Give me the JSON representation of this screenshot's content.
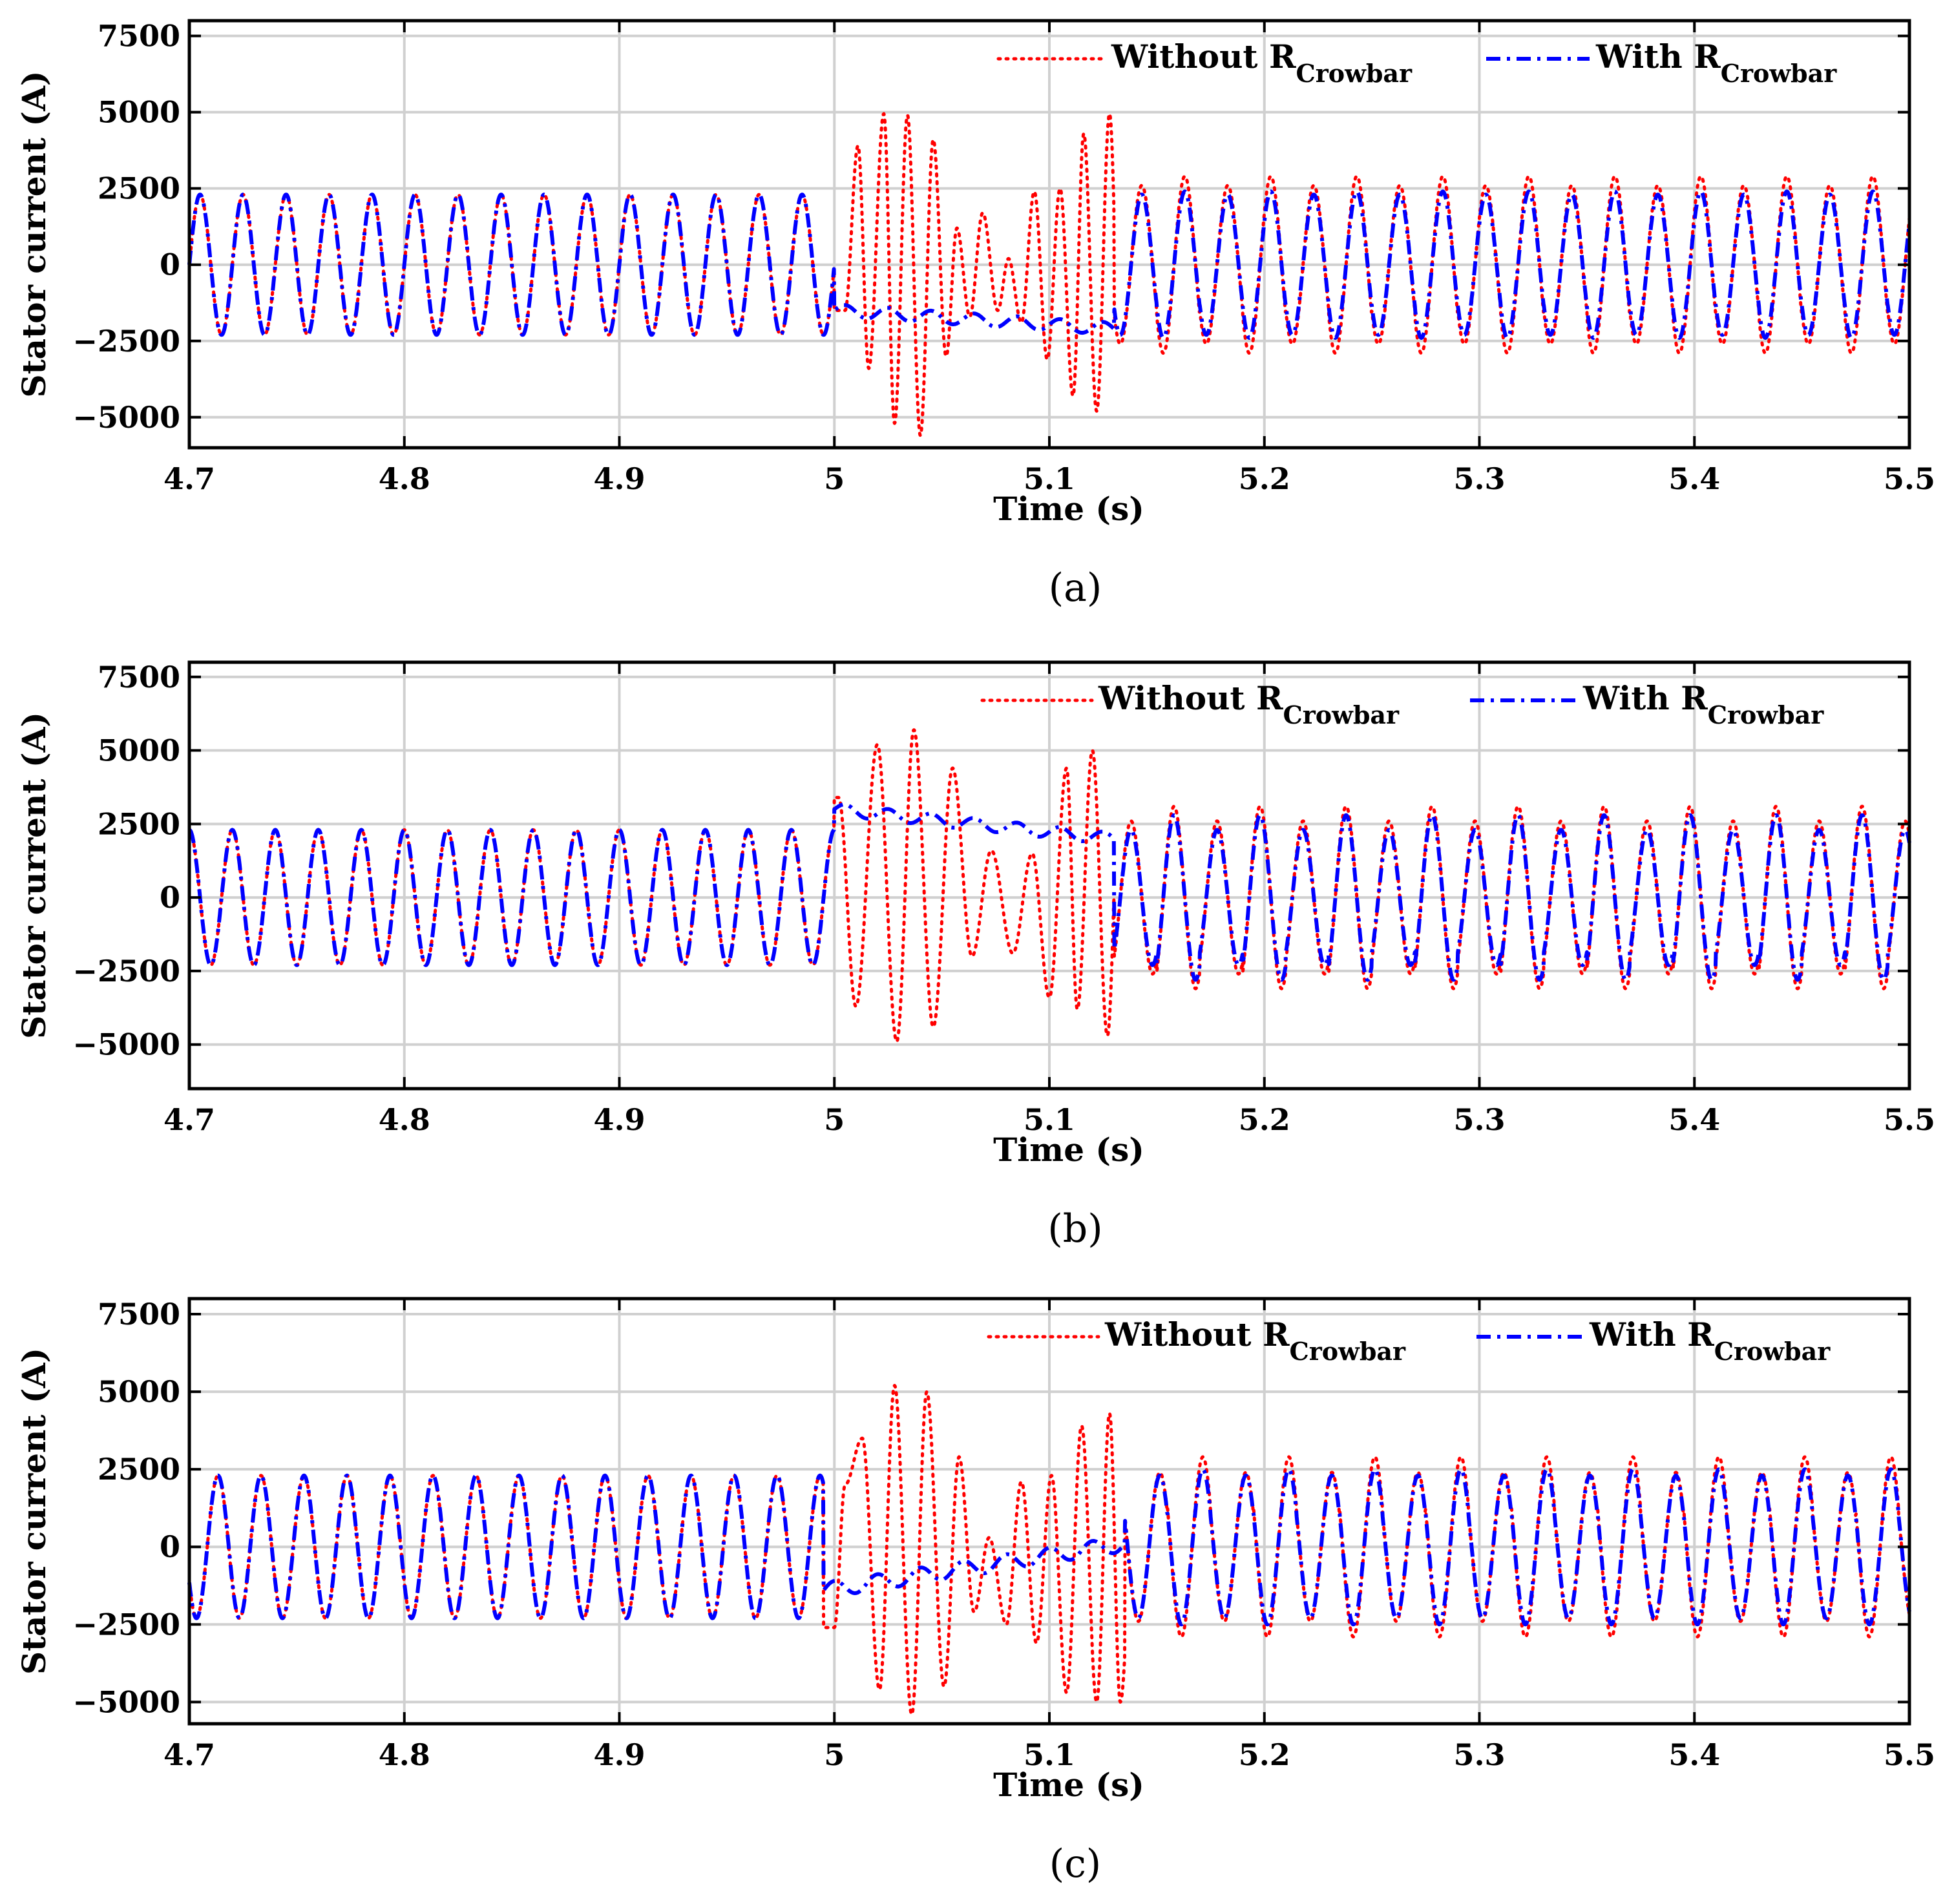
{
  "figure": {
    "colors": {
      "without": "#ff0000",
      "with": "#0000ff",
      "grid": "#d0d0d0",
      "axis": "#000000"
    }
  },
  "chart_data": [
    {
      "type": "line",
      "panel": "a",
      "caption": "(a)",
      "xlabel": "Time (s)",
      "ylabel": "Stator current (A)",
      "xlim": [
        4.7,
        5.5
      ],
      "ylim": [
        -6000,
        8000
      ],
      "xticks": [
        4.7,
        4.8,
        4.9,
        5.0,
        5.1,
        5.2,
        5.3,
        5.4,
        5.5
      ],
      "xtick_labels": [
        "4.7",
        "4.8",
        "4.9",
        "5",
        "5.1",
        "5.2",
        "5.3",
        "5.4",
        "5.5"
      ],
      "yticks": [
        7500,
        5000,
        2500,
        0,
        -2500,
        -5000
      ],
      "ytick_labels": [
        "7500",
        "5000",
        "2500",
        "0",
        "−2500",
        "−5000"
      ],
      "grid": true,
      "legend": {
        "position": "top-right",
        "entries": [
          {
            "name": "Without",
            "sub": "Crowbar",
            "style": "dotted",
            "series": "without"
          },
          {
            "name": "With",
            "sub": "Crowbar",
            "style": "dash-dot",
            "series": "with"
          }
        ],
        "symbol": "R"
      },
      "series": [
        {
          "name": "Without R_Crowbar",
          "style": "dotted",
          "frequency_hz": 50,
          "fault_window_s": [
            5.0,
            5.13
          ],
          "pre_fault_amplitude": 2300,
          "pre_fault_phase_deg": 0,
          "fault_peaks": [
            [
              5.005,
              -1500
            ],
            [
              5.011,
              3900
            ],
            [
              5.016,
              -3400
            ],
            [
              5.023,
              4950
            ],
            [
              5.028,
              -5200
            ],
            [
              5.034,
              4900
            ],
            [
              5.04,
              -5600
            ],
            [
              5.046,
              4100
            ],
            [
              5.052,
              -3000
            ],
            [
              5.057,
              1200
            ],
            [
              5.063,
              -1700
            ],
            [
              5.069,
              1700
            ],
            [
              5.076,
              -1500
            ],
            [
              5.081,
              200
            ],
            [
              5.087,
              -1900
            ],
            [
              5.093,
              2400
            ],
            [
              5.099,
              -3100
            ],
            [
              5.105,
              2500
            ],
            [
              5.111,
              -4300
            ],
            [
              5.116,
              4300
            ],
            [
              5.122,
              -4800
            ],
            [
              5.128,
              4950
            ],
            [
              5.133,
              -3800
            ],
            [
              5.138,
              2000
            ]
          ],
          "post_fault_amplitude": [
            2600,
            2900
          ],
          "post_fault_phase_deg": 36
        },
        {
          "name": "With R_Crowbar",
          "style": "dash-dot",
          "frequency_hz": 50,
          "fault_window_s": [
            5.0,
            5.13
          ],
          "pre_fault_amplitude": 2300,
          "pre_fault_phase_deg": 0,
          "fault_dc": [
            -1500,
            -2100
          ],
          "fault_ripple": 200,
          "post_fault_amplitude": [
            2300,
            2400
          ],
          "post_fault_phase_deg": 36
        }
      ]
    },
    {
      "type": "line",
      "panel": "b",
      "caption": "(b)",
      "xlabel": "Time (s)",
      "ylabel": "Stator current (A)",
      "xlim": [
        4.7,
        5.5
      ],
      "ylim": [
        -6500,
        8000
      ],
      "xticks": [
        4.7,
        4.8,
        4.9,
        5.0,
        5.1,
        5.2,
        5.3,
        5.4,
        5.5
      ],
      "xtick_labels": [
        "4.7",
        "4.8",
        "4.9",
        "5",
        "5.1",
        "5.2",
        "5.3",
        "5.4",
        "5.5"
      ],
      "yticks": [
        7500,
        5000,
        2500,
        0,
        -2500,
        -5000
      ],
      "ytick_labels": [
        "7500",
        "5000",
        "2500",
        "0",
        "−2500",
        "−5000"
      ],
      "grid": true,
      "legend": {
        "position": "top-right",
        "entries": [
          {
            "name": "Without",
            "sub": "Crowbar",
            "style": "dotted",
            "series": "without"
          },
          {
            "name": "With",
            "sub": "Crowbar",
            "style": "dash-dot",
            "series": "with"
          }
        ],
        "symbol": "R"
      },
      "series": [
        {
          "name": "Without R_Crowbar",
          "style": "dotted",
          "frequency_hz": 50,
          "fault_window_s": [
            5.0,
            5.13
          ],
          "pre_fault_amplitude": 2300,
          "pre_fault_phase_deg": 90,
          "fault_peaks": [
            [
              5.002,
              3400
            ],
            [
              5.01,
              -3700
            ],
            [
              5.02,
              5200
            ],
            [
              5.029,
              -4900
            ],
            [
              5.037,
              5700
            ],
            [
              5.046,
              -4400
            ],
            [
              5.055,
              4400
            ],
            [
              5.064,
              -2000
            ],
            [
              5.073,
              1600
            ],
            [
              5.083,
              -1900
            ],
            [
              5.092,
              1500
            ],
            [
              5.1,
              -3400
            ],
            [
              5.108,
              4400
            ],
            [
              5.113,
              -3800
            ],
            [
              5.12,
              5000
            ],
            [
              5.127,
              -4700
            ],
            [
              5.133,
              4700
            ],
            [
              5.138,
              -2300
            ]
          ],
          "post_fault_amplitude": [
            2600,
            3100
          ],
          "post_fault_phase_deg": 126
        },
        {
          "name": "With R_Crowbar",
          "style": "dash-dot",
          "frequency_hz": 50,
          "fault_window_s": [
            5.0,
            5.13
          ],
          "pre_fault_amplitude": 2300,
          "pre_fault_phase_deg": 90,
          "fault_dc": [
            3000,
            2000
          ],
          "fault_ripple": 200,
          "post_fault_amplitude": [
            2300,
            2800
          ],
          "post_fault_phase_deg": 126
        }
      ]
    },
    {
      "type": "line",
      "panel": "c",
      "caption": "(c)",
      "xlabel": "Time (s)",
      "ylabel": "Stator current (A)",
      "xlim": [
        4.7,
        5.5
      ],
      "ylim": [
        -5700,
        8000
      ],
      "xticks": [
        4.7,
        4.8,
        4.9,
        5.0,
        5.1,
        5.2,
        5.3,
        5.4,
        5.5
      ],
      "xtick_labels": [
        "4.7",
        "4.8",
        "4.9",
        "5",
        "5.1",
        "5.2",
        "5.3",
        "5.4",
        "5.5"
      ],
      "yticks": [
        7500,
        5000,
        2500,
        0,
        -2500,
        -5000
      ],
      "ytick_labels": [
        "7500",
        "5000",
        "2500",
        "0",
        "−2500",
        "−5000"
      ],
      "grid": true,
      "legend": {
        "position": "top-right",
        "entries": [
          {
            "name": "Without",
            "sub": "Crowbar",
            "style": "dotted",
            "series": "without"
          },
          {
            "name": "With",
            "sub": "Crowbar",
            "style": "dash-dot",
            "series": "with"
          }
        ],
        "symbol": "R"
      },
      "series": [
        {
          "name": "Without R_Crowbar",
          "style": "dotted",
          "frequency_hz": 50,
          "fault_window_s": [
            4.995,
            5.135
          ],
          "pre_fault_amplitude": 2300,
          "pre_fault_phase_deg": 210,
          "fault_peaks": [
            [
              5.0,
              -2600
            ],
            [
              5.005,
              2000
            ],
            [
              5.013,
              3500
            ],
            [
              5.021,
              -4600
            ],
            [
              5.028,
              5200
            ],
            [
              5.036,
              -5400
            ],
            [
              5.043,
              5000
            ],
            [
              5.051,
              -4500
            ],
            [
              5.058,
              2900
            ],
            [
              5.065,
              -2100
            ],
            [
              5.072,
              300
            ],
            [
              5.08,
              -2500
            ],
            [
              5.087,
              2100
            ],
            [
              5.094,
              -3100
            ],
            [
              5.101,
              2300
            ],
            [
              5.108,
              -4700
            ],
            [
              5.115,
              3900
            ],
            [
              5.122,
              -5000
            ],
            [
              5.128,
              4300
            ],
            [
              5.133,
              -5000
            ],
            [
              5.14,
              2500
            ]
          ],
          "post_fault_amplitude": [
            2400,
            2900
          ],
          "post_fault_phase_deg": 245
        },
        {
          "name": "With R_Crowbar",
          "style": "dash-dot",
          "frequency_hz": 50,
          "fault_window_s": [
            4.995,
            5.135
          ],
          "pre_fault_amplitude": 2300,
          "pre_fault_phase_deg": 210,
          "fault_dc": [
            -1400,
            100
          ],
          "fault_ripple": 250,
          "post_fault_amplitude": [
            2300,
            2500
          ],
          "post_fault_phase_deg": 245
        }
      ]
    }
  ]
}
